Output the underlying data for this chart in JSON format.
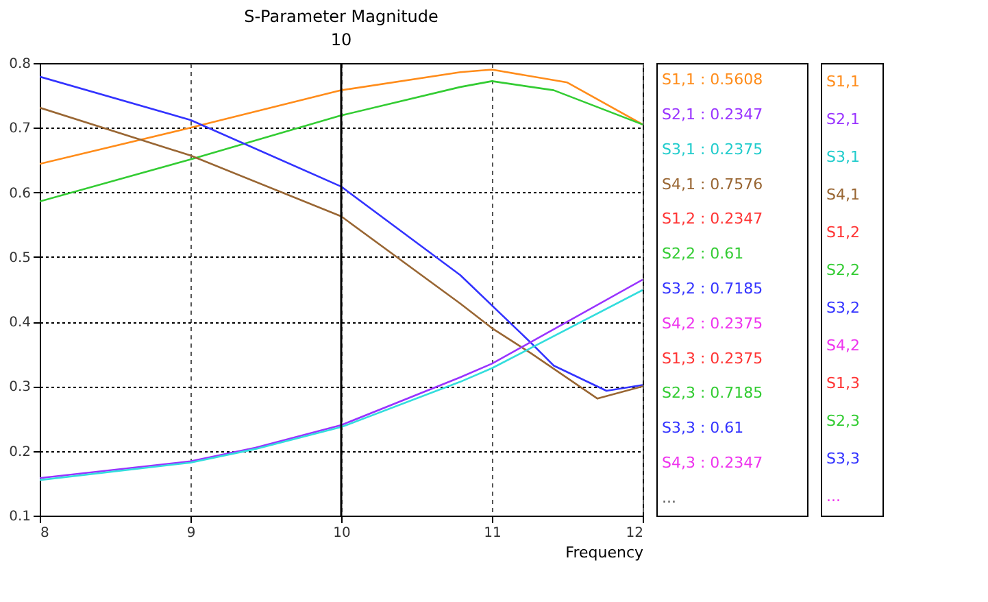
{
  "chart_data": {
    "type": "line",
    "title": "S-Parameter Magnitude",
    "xlabel": "Frequency",
    "xlim": [
      8,
      12
    ],
    "xticks": [
      8,
      9,
      10,
      11,
      12
    ],
    "ylim": [
      0.1,
      0.8
    ],
    "yticks": [
      0.1,
      0.2,
      0.3,
      0.4,
      0.5,
      0.6,
      0.7,
      0.8
    ],
    "grid": true,
    "marker": "none",
    "line_style": "solid",
    "ref_lines": [
      {
        "axis": "x",
        "value": 10,
        "label": "10",
        "color": "#000000"
      }
    ],
    "series": [
      {
        "color": "#ff8c1a",
        "x": [
          8,
          9,
          10,
          10.79,
          11,
          11.5,
          12
        ],
        "values": [
          0.644,
          0.7,
          0.758,
          0.786,
          0.79,
          0.77,
          0.705
        ]
      },
      {
        "color": "#33cc33",
        "x": [
          8,
          9,
          10,
          10.79,
          11,
          11.41,
          12
        ],
        "values": [
          0.586,
          0.651,
          0.719,
          0.763,
          0.772,
          0.758,
          0.705
        ]
      },
      {
        "color": "#3333ff",
        "x": [
          8,
          9,
          10,
          10.79,
          11.26,
          11.41,
          11.76,
          12
        ],
        "values": [
          0.779,
          0.712,
          0.609,
          0.472,
          0.367,
          0.332,
          0.293,
          0.302
        ]
      },
      {
        "color": "#996633",
        "x": [
          8,
          9,
          10,
          10.79,
          11,
          11.26,
          11.7,
          12
        ],
        "values": [
          0.731,
          0.657,
          0.563,
          0.428,
          0.39,
          0.351,
          0.281,
          0.3
        ]
      },
      {
        "color": "#9933ff",
        "x": [
          8,
          9,
          9.43,
          10,
          10.79,
          11,
          12
        ],
        "values": [
          0.158,
          0.184,
          0.205,
          0.24,
          0.314,
          0.335,
          0.465
        ]
      },
      {
        "color": "#33dddd",
        "x": [
          8,
          9,
          9.43,
          10,
          10.79,
          11,
          12
        ],
        "values": [
          0.155,
          0.182,
          0.203,
          0.237,
          0.307,
          0.328,
          0.449
        ]
      }
    ],
    "annotations": [
      "S1,1 : 0.5608",
      "S2,1 : 0.2347",
      "S3,1 : 0.2375",
      "S4,1 : 0.7576",
      "S1,2 : 0.2347",
      "S2,2 : 0.61",
      "S3,2 : 0.7185",
      "S4,2 : 0.2375",
      "S1,3 : 0.2375",
      "S2,3 : 0.7185",
      "S3,3 : 0.61",
      "S4,3 : 0.2347",
      "...",
      "S1,1",
      "S2,1",
      "S3,1",
      "S4,1",
      "S1,2",
      "S2,2",
      "S3,2",
      "S4,2",
      "S1,3",
      "S2,3",
      "S3,3",
      "..."
    ]
  }
}
